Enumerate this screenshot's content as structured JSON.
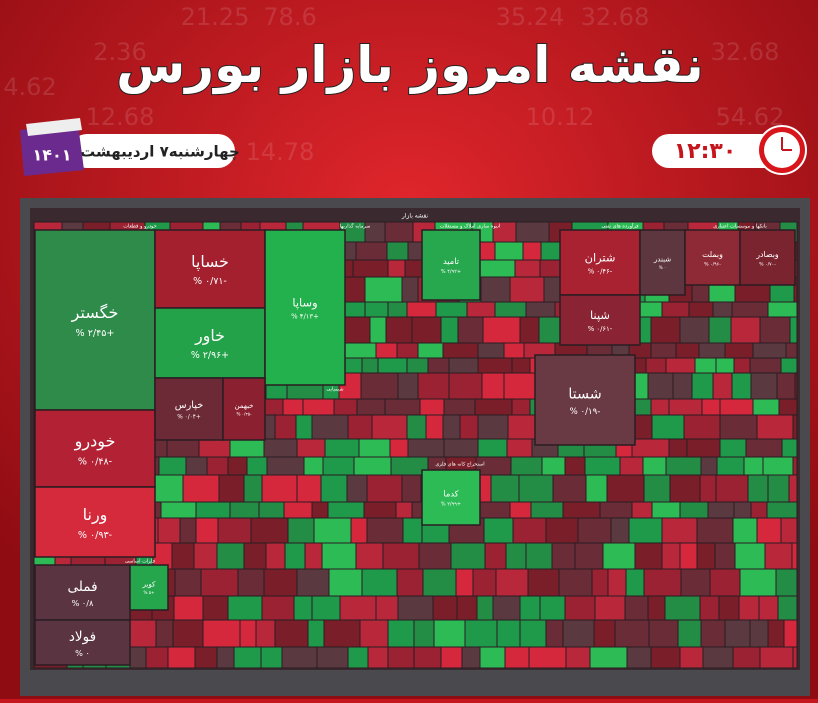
{
  "header": {
    "title": "نقشه امروز بازار بورس",
    "date": "چهارشنبه۷ اردیبهشت",
    "year": "۱۴۰۱",
    "time": "۱۲:۳۰"
  },
  "background_numbers": [
    "35.24",
    "32.68",
    "21.25",
    "78.6",
    "2.36",
    "4.62",
    "12.68",
    "10.12",
    "14.78",
    "54.62",
    "32.68"
  ],
  "map": {
    "title": "نقشه بازار",
    "sectors": [
      "خودرو و قطعات",
      "سرمایه گذاریها",
      "انبوه سازی املاک و مستغلات",
      "فرآورده های نفتی",
      "بانکها و موسسات اعتباری",
      "شیمیایی",
      "فلزات اساسی",
      "استخراج کانه های فلزی"
    ],
    "tiles": [
      {
        "label": "خگستر",
        "change": "% ۲/۴۵+",
        "color": "#2e8b4a"
      },
      {
        "label": "خودرو",
        "change": "% ۰/۴۸-",
        "color": "#b22234"
      },
      {
        "label": "ورنا",
        "change": "% ۰/۹۳-",
        "color": "#d42a3c"
      },
      {
        "label": "خساپا",
        "change": "% ۰/۷۱-",
        "color": "#a4202f"
      },
      {
        "label": "خاور",
        "change": "% ۲/۹۶+",
        "color": "#24a24a"
      },
      {
        "label": "وساپا",
        "change": "% ۴/۱۳+",
        "color": "#22b14c"
      },
      {
        "label": "خپارس",
        "change": "% ۰/۰۴+",
        "color": "#6b2a35"
      },
      {
        "label": "خبهمن",
        "change": "% ۰/۳۵-",
        "color": "#8b2030"
      },
      {
        "label": "تامید",
        "change": "% ۴/۹۲+",
        "color": "#27a84e"
      },
      {
        "label": "شتران",
        "change": "% ۰/۴۶-",
        "color": "#a82232"
      },
      {
        "label": "شپنا",
        "change": "% ۰/۶۱-",
        "color": "#8a2434"
      },
      {
        "label": "شبندر",
        "change": "% ۰",
        "color": "#5e3640"
      },
      {
        "label": "وبملت",
        "change": "% ۰/۹۶-",
        "color": "#8e2a35"
      },
      {
        "label": "وبصادر",
        "change": "% ۰/۷۰-",
        "color": "#7a2430"
      },
      {
        "label": "شستا",
        "change": "% ۰/۱۹-",
        "color": "#6a3a44"
      },
      {
        "label": "کدما",
        "change": "% ۲/۹۹+",
        "color": "#2dbb55"
      },
      {
        "label": "فملی",
        "change": "% ۰/۸",
        "color": "#5a3440"
      },
      {
        "label": "فولاد",
        "change": "% ۰",
        "color": "#5a3440"
      },
      {
        "label": "کویر",
        "change": "% ۵+",
        "color": "#25a64c"
      }
    ]
  }
}
